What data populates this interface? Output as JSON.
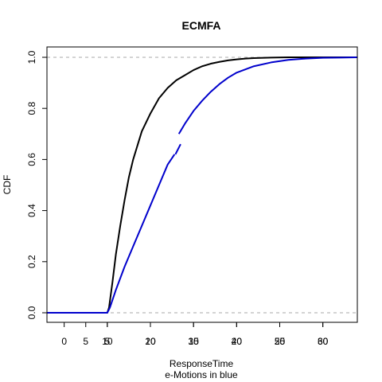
{
  "chart_data": {
    "type": "line",
    "title": "ECMFA",
    "xlabel": "ResponseTime",
    "xlabel2": "e-Motions in blue",
    "ylabel": "CDF",
    "xlim": [
      -2,
      34
    ],
    "ylim": [
      0,
      1
    ],
    "grid": false,
    "reference_lines": [
      0,
      1
    ],
    "y_ticks": [
      0.0,
      0.2,
      0.4,
      0.6,
      0.8,
      1.0
    ],
    "y_tick_labels": [
      "0.0",
      "0.2",
      "0.4",
      "0.6",
      "0.8",
      "1.0"
    ],
    "x_ticks_black": [
      {
        "value": 0,
        "label": "0"
      },
      {
        "value": 5,
        "label": "5"
      },
      {
        "value": 10,
        "label": "10"
      },
      {
        "value": 15,
        "label": "15"
      },
      {
        "value": 20,
        "label": "20"
      },
      {
        "value": 25,
        "label": "25"
      },
      {
        "value": 30,
        "label": "30"
      }
    ],
    "x_ticks_blue": [
      {
        "value": 5,
        "label": "5"
      },
      {
        "value": 10,
        "label": "10"
      },
      {
        "value": 20,
        "label": "20"
      },
      {
        "value": 30,
        "label": "30"
      },
      {
        "value": 40,
        "label": "40"
      },
      {
        "value": 50,
        "label": "50"
      },
      {
        "value": 60,
        "label": "60"
      }
    ],
    "series": [
      {
        "color": "#000000",
        "x": [
          -2,
          5,
          5.2,
          5.6,
          6,
          6.5,
          7,
          7.5,
          8,
          9,
          10,
          11,
          12,
          13,
          14,
          15,
          16,
          17,
          18,
          19,
          20,
          21,
          22,
          24,
          26,
          28,
          30,
          32,
          34
        ],
        "y": [
          0,
          0,
          0.02,
          0.12,
          0.23,
          0.34,
          0.44,
          0.53,
          0.6,
          0.71,
          0.78,
          0.84,
          0.88,
          0.91,
          0.93,
          0.95,
          0.965,
          0.975,
          0.982,
          0.988,
          0.992,
          0.995,
          0.997,
          0.999,
          1.0,
          1.0,
          1.0,
          1.0,
          1.0
        ]
      },
      {
        "color": "#0000cc",
        "x": [
          -2,
          5,
          5.3,
          6,
          7,
          8,
          9,
          10,
          11,
          12,
          12.8
        ],
        "y": [
          0,
          0,
          0.02,
          0.09,
          0.18,
          0.26,
          0.34,
          0.42,
          0.5,
          0.58,
          0.62
        ]
      },
      {
        "color": "#0000cc",
        "x": [
          12.9,
          13.5
        ],
        "y": [
          0.62,
          0.66
        ]
      },
      {
        "color": "#0000cc",
        "x": [
          13.3,
          14,
          15,
          16,
          17,
          18,
          19,
          20,
          22,
          24,
          26,
          28,
          30,
          32,
          34
        ],
        "y": [
          0.7,
          0.74,
          0.79,
          0.83,
          0.865,
          0.895,
          0.92,
          0.94,
          0.965,
          0.98,
          0.99,
          0.995,
          0.998,
          0.999,
          1.0
        ]
      }
    ]
  }
}
